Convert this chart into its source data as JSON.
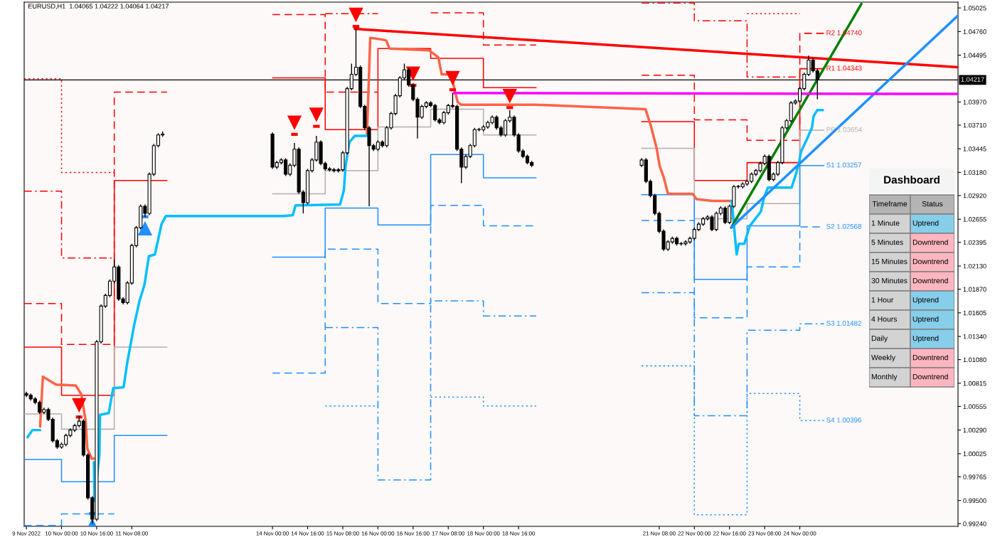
{
  "chart_data": [
    {
      "type": "candlestick",
      "title": "EURUSD,H1  1.04065 1.04222 1.04064 1.04217",
      "color": "#000000",
      "x": [
        "2022-11-09T08:00",
        "2022-11-09T10:00",
        "2022-11-09T12:00",
        "2022-11-09T14:00",
        "2022-11-09T16:00",
        "2022-11-09T18:00",
        "2022-11-09T20:00",
        "2022-11-09T22:00",
        "2022-11-10T00:00",
        "2022-11-10T02:00",
        "2022-11-10T04:00",
        "2022-11-10T06:00",
        "2022-11-10T08:00",
        "2022-11-10T10:00",
        "2022-11-10T12:00",
        "2022-11-10T14:00",
        "2022-11-10T16:00",
        "2022-11-10T18:00",
        "2022-11-10T20:00",
        "2022-11-10T22:00",
        "2022-11-11T00:00",
        "2022-11-11T02:00",
        "2022-11-11T04:00",
        "2022-11-11T06:00",
        "2022-11-11T08:00",
        "2022-11-11T10:00",
        "2022-11-11T12:00",
        "2022-11-11T14:00",
        "2022-11-11T16:00",
        "2022-11-11T18:00",
        "2022-11-11T20:00",
        "2022-11-11T22:00",
        "2022-11-14T00:00",
        "2022-11-14T02:00",
        "2022-11-14T04:00",
        "2022-11-14T06:00",
        "2022-11-14T08:00",
        "2022-11-14T10:00",
        "2022-11-14T12:00",
        "2022-11-14T14:00",
        "2022-11-14T16:00",
        "2022-11-14T18:00",
        "2022-11-14T20:00",
        "2022-11-14T22:00",
        "2022-11-15T00:00",
        "2022-11-15T02:00",
        "2022-11-15T04:00",
        "2022-11-15T06:00",
        "2022-11-15T08:00",
        "2022-11-15T10:00",
        "2022-11-15T12:00",
        "2022-11-15T14:00",
        "2022-11-15T16:00",
        "2022-11-15T18:00",
        "2022-11-15T20:00",
        "2022-11-15T22:00",
        "2022-11-16T00:00",
        "2022-11-16T02:00",
        "2022-11-16T04:00",
        "2022-11-16T06:00",
        "2022-11-16T08:00",
        "2022-11-16T10:00",
        "2022-11-16T12:00",
        "2022-11-16T14:00",
        "2022-11-16T16:00",
        "2022-11-16T18:00",
        "2022-11-16T20:00",
        "2022-11-16T22:00",
        "2022-11-17T00:00",
        "2022-11-17T02:00",
        "2022-11-17T04:00",
        "2022-11-17T06:00",
        "2022-11-17T08:00",
        "2022-11-17T10:00",
        "2022-11-17T12:00",
        "2022-11-17T14:00",
        "2022-11-17T16:00",
        "2022-11-17T18:00",
        "2022-11-17T20:00",
        "2022-11-17T22:00",
        "2022-11-18T00:00",
        "2022-11-18T02:00",
        "2022-11-18T04:00",
        "2022-11-18T06:00",
        "2022-11-18T08:00",
        "2022-11-18T10:00",
        "2022-11-18T12:00",
        "2022-11-18T14:00",
        "2022-11-18T16:00",
        "2022-11-18T18:00",
        "2022-11-18T20:00",
        "2022-11-18T22:00",
        "2022-11-21T00:00",
        "2022-11-21T02:00",
        "2022-11-21T04:00",
        "2022-11-21T06:00",
        "2022-11-21T08:00",
        "2022-11-21T10:00",
        "2022-11-21T12:00",
        "2022-11-21T14:00",
        "2022-11-21T16:00",
        "2022-11-21T18:00",
        "2022-11-21T20:00",
        "2022-11-21T22:00",
        "2022-11-22T00:00",
        "2022-11-22T02:00",
        "2022-11-22T04:00",
        "2022-11-22T06:00",
        "2022-11-22T08:00",
        "2022-11-22T10:00",
        "2022-11-22T12:00",
        "2022-11-22T14:00",
        "2022-11-22T16:00",
        "2022-11-22T18:00",
        "2022-11-22T20:00",
        "2022-11-22T22:00",
        "2022-11-23T00:00",
        "2022-11-23T02:00",
        "2022-11-23T04:00",
        "2022-11-23T06:00",
        "2022-11-23T08:00",
        "2022-11-23T10:00",
        "2022-11-23T12:00",
        "2022-11-23T14:00",
        "2022-11-23T16:00",
        "2022-11-23T18:00",
        "2022-11-23T20:00",
        "2022-11-23T22:00",
        "2022-11-24T00:00",
        "2022-11-24T02:00",
        "2022-11-24T04:00",
        "2022-11-24T06:00",
        "2022-11-24T08:00"
      ],
      "ohlc": [
        [
          1.007,
          1.0072,
          1.0066,
          1.0068
        ],
        [
          1.0068,
          1.007,
          1.0062,
          1.0064
        ],
        [
          1.0064,
          1.0066,
          1.0058,
          1.006
        ],
        [
          1.006,
          1.0062,
          1.0047,
          1.0049
        ],
        [
          1.0049,
          1.0054,
          1.0047,
          1.0052
        ],
        [
          1.0052,
          1.0054,
          1.0039,
          1.0041
        ],
        [
          1.0041,
          1.0043,
          1.0015,
          1.0017
        ],
        [
          1.0017,
          1.0019,
          1.0008,
          1.001
        ],
        [
          1.001,
          1.0015,
          1.0008,
          1.0013
        ],
        [
          1.0013,
          1.0025,
          1.0011,
          1.0023
        ],
        [
          1.0023,
          1.0031,
          1.0021,
          1.0029
        ],
        [
          1.0029,
          1.0036,
          1.0027,
          1.0034
        ],
        [
          1.0034,
          1.0045,
          1.0032,
          1.0039
        ],
        [
          1.0039,
          1.0041,
          0.9999,
          1.0001
        ],
        [
          1.0001,
          1.0003,
          0.9951,
          0.9953
        ],
        [
          0.9953,
          0.9955,
          0.9924,
          0.9929
        ],
        [
          0.9929,
          1.013,
          0.9927,
          1.0128
        ],
        [
          1.0128,
          1.017,
          1.0126,
          1.0168
        ],
        [
          1.0168,
          1.0182,
          1.0166,
          1.018
        ],
        [
          1.018,
          1.0198,
          1.0178,
          1.0196
        ],
        [
          1.0196,
          1.022,
          1.0194,
          1.0212
        ],
        [
          1.0212,
          1.0214,
          1.0174,
          1.0176
        ],
        [
          1.0176,
          1.0178,
          1.017,
          1.0172
        ],
        [
          1.0172,
          1.0196,
          1.017,
          1.0194
        ],
        [
          1.0194,
          1.0238,
          1.0192,
          1.0236
        ],
        [
          1.0236,
          1.0258,
          1.0234,
          1.0256
        ],
        [
          1.0256,
          1.0282,
          1.0254,
          1.028
        ],
        [
          1.028,
          1.0282,
          1.0268,
          1.0272
        ],
        [
          1.0272,
          1.0318,
          1.027,
          1.0316
        ],
        [
          1.0316,
          1.035,
          1.0314,
          1.0348
        ],
        [
          1.0348,
          1.0362,
          1.0346,
          1.036
        ],
        [
          1.036,
          1.0364,
          1.0358,
          1.0361
        ],
        [
          1.0361,
          1.0363,
          1.0322,
          1.0324
        ],
        [
          1.0324,
          1.0331,
          1.0322,
          1.0329
        ],
        [
          1.0329,
          1.0334,
          1.0327,
          1.0332
        ],
        [
          1.0332,
          1.0334,
          1.0314,
          1.0316
        ],
        [
          1.0316,
          1.0328,
          1.0314,
          1.0326
        ],
        [
          1.0326,
          1.0351,
          1.0324,
          1.0344
        ],
        [
          1.0344,
          1.0346,
          1.0294,
          1.0296
        ],
        [
          1.0296,
          1.0298,
          1.0272,
          1.0284
        ],
        [
          1.0284,
          1.0322,
          1.0282,
          1.032
        ],
        [
          1.032,
          1.0334,
          1.0318,
          1.0332
        ],
        [
          1.0332,
          1.0359,
          1.033,
          1.0352
        ],
        [
          1.0352,
          1.0354,
          1.0326,
          1.0328
        ],
        [
          1.0328,
          1.033,
          1.032,
          1.0322
        ],
        [
          1.0322,
          1.0324,
          1.0319,
          1.0321
        ],
        [
          1.0321,
          1.0323,
          1.0318,
          1.032
        ],
        [
          1.032,
          1.0323,
          1.0318,
          1.0321
        ],
        [
          1.0321,
          1.0342,
          1.0319,
          1.034
        ],
        [
          1.034,
          1.0414,
          1.0338,
          1.0412
        ],
        [
          1.0412,
          1.044,
          1.041,
          1.0428
        ],
        [
          1.0428,
          1.0479,
          1.0426,
          1.0436
        ],
        [
          1.0436,
          1.0438,
          1.039,
          1.0392
        ],
        [
          1.0392,
          1.0394,
          1.0366,
          1.0368
        ],
        [
          1.0368,
          1.037,
          1.028,
          1.0348
        ],
        [
          1.0348,
          1.035,
          1.0342,
          1.0344
        ],
        [
          1.0344,
          1.0354,
          1.0342,
          1.0352
        ],
        [
          1.0352,
          1.0354,
          1.0346,
          1.0348
        ],
        [
          1.0348,
          1.037,
          1.0346,
          1.0368
        ],
        [
          1.0368,
          1.0386,
          1.0366,
          1.0384
        ],
        [
          1.0384,
          1.0406,
          1.0382,
          1.0404
        ],
        [
          1.0404,
          1.0426,
          1.0402,
          1.0424
        ],
        [
          1.0424,
          1.044,
          1.0422,
          1.0433
        ],
        [
          1.0433,
          1.0435,
          1.0414,
          1.0416
        ],
        [
          1.0416,
          1.0418,
          1.0398,
          1.04
        ],
        [
          1.04,
          1.0402,
          1.0356,
          1.038
        ],
        [
          1.038,
          1.0394,
          1.0378,
          1.0392
        ],
        [
          1.0392,
          1.0398,
          1.039,
          1.0396
        ],
        [
          1.0396,
          1.0398,
          1.0391,
          1.0393
        ],
        [
          1.0393,
          1.0395,
          1.0375,
          1.0377
        ],
        [
          1.0377,
          1.0379,
          1.0372,
          1.0374
        ],
        [
          1.0374,
          1.0387,
          1.0372,
          1.0385
        ],
        [
          1.0385,
          1.0395,
          1.0383,
          1.0393
        ],
        [
          1.0393,
          1.0407,
          1.039,
          1.0392
        ],
        [
          1.0392,
          1.0394,
          1.0342,
          1.0344
        ],
        [
          1.0344,
          1.0346,
          1.0306,
          1.0324
        ],
        [
          1.0324,
          1.0338,
          1.0322,
          1.0336
        ],
        [
          1.0336,
          1.035,
          1.0334,
          1.0348
        ],
        [
          1.0348,
          1.0368,
          1.0346,
          1.0366
        ],
        [
          1.0366,
          1.0368,
          1.0364,
          1.0366
        ],
        [
          1.0366,
          1.0371,
          1.0364,
          1.0369
        ],
        [
          1.0369,
          1.0376,
          1.0367,
          1.0374
        ],
        [
          1.0374,
          1.0382,
          1.0372,
          1.038
        ],
        [
          1.038,
          1.0382,
          1.0366,
          1.0368
        ],
        [
          1.0368,
          1.037,
          1.0358,
          1.036
        ],
        [
          1.036,
          1.0378,
          1.0358,
          1.0376
        ],
        [
          1.0376,
          1.0388,
          1.0374,
          1.038
        ],
        [
          1.038,
          1.0382,
          1.0358,
          1.036
        ],
        [
          1.036,
          1.0362,
          1.034,
          1.0342
        ],
        [
          1.0342,
          1.0344,
          1.0334,
          1.0336
        ],
        [
          1.0336,
          1.0338,
          1.0327,
          1.0329
        ],
        [
          1.0329,
          1.0331,
          1.0324,
          1.0326
        ],
        [
          1.0326,
          1.0334,
          1.0324,
          1.0332
        ],
        [
          1.0332,
          1.0334,
          1.0306,
          1.0308
        ],
        [
          1.0308,
          1.031,
          1.029,
          1.0292
        ],
        [
          1.0292,
          1.0294,
          1.027,
          1.0272
        ],
        [
          1.0272,
          1.0274,
          1.025,
          1.0252
        ],
        [
          1.0252,
          1.0254,
          1.023,
          1.0232
        ],
        [
          1.0232,
          1.0242,
          1.023,
          1.024
        ],
        [
          1.024,
          1.0246,
          1.0238,
          1.0244
        ],
        [
          1.0244,
          1.0246,
          1.0236,
          1.0238
        ],
        [
          1.0238,
          1.024,
          1.0236,
          1.0238
        ],
        [
          1.0238,
          1.0242,
          1.0236,
          1.024
        ],
        [
          1.024,
          1.0246,
          1.0238,
          1.0244
        ],
        [
          1.0244,
          1.0256,
          1.0242,
          1.0254
        ],
        [
          1.0254,
          1.0262,
          1.0252,
          1.026
        ],
        [
          1.026,
          1.0268,
          1.0258,
          1.0266
        ],
        [
          1.0266,
          1.027,
          1.0264,
          1.0268
        ],
        [
          1.0268,
          1.027,
          1.0252,
          1.0254
        ],
        [
          1.0254,
          1.0274,
          1.0252,
          1.0272
        ],
        [
          1.0272,
          1.028,
          1.027,
          1.0278
        ],
        [
          1.0278,
          1.028,
          1.026,
          1.0262
        ],
        [
          1.0262,
          1.0282,
          1.026,
          1.028
        ],
        [
          1.028,
          1.0304,
          1.0278,
          1.0302
        ],
        [
          1.0302,
          1.0304,
          1.03,
          1.0302
        ],
        [
          1.0302,
          1.0307,
          1.03,
          1.0305
        ],
        [
          1.0305,
          1.031,
          1.0303,
          1.0308
        ],
        [
          1.0308,
          1.0318,
          1.0306,
          1.0316
        ],
        [
          1.0316,
          1.0322,
          1.0314,
          1.032
        ],
        [
          1.032,
          1.033,
          1.0318,
          1.0328
        ],
        [
          1.0328,
          1.0338,
          1.0326,
          1.0336
        ],
        [
          1.0336,
          1.0338,
          1.0308,
          1.031
        ],
        [
          1.031,
          1.0318,
          1.0308,
          1.0316
        ],
        [
          1.0316,
          1.0331,
          1.0314,
          1.0329
        ],
        [
          1.0329,
          1.037,
          1.0327,
          1.0368
        ],
        [
          1.0368,
          1.0378,
          1.0366,
          1.0376
        ],
        [
          1.0376,
          1.0398,
          1.0374,
          1.0396
        ],
        [
          1.0396,
          1.04,
          1.0394,
          1.0398
        ],
        [
          1.0398,
          1.0414,
          1.0396,
          1.0412
        ],
        [
          1.0412,
          1.043,
          1.041,
          1.0428
        ],
        [
          1.0428,
          1.0449,
          1.0426,
          1.0444
        ],
        [
          1.0444,
          1.0446,
          1.043,
          1.0432
        ],
        [
          1.0432,
          1.0434,
          1.04,
          1.04217
        ]
      ],
      "series": [
        {
          "type": "line",
          "color": "#ff0000",
          "line_style": "dashed",
          "x": [
            "2022-11-21T00:00",
            "2022-11-22T00:00",
            "2022-11-22T00:00",
            "2022-11-23T00:00",
            "2022-11-23T00:00",
            "2022-11-24T00:00",
            "2022-11-24T00:00",
            "2022-11-24T11:00"
          ],
          "values": [
            1.0427,
            1.0427,
            1.0377,
            1.0377,
            1.0354,
            1.0354,
            1.0474,
            1.0474
          ]
        },
        {
          "type": "line",
          "color": "#ff0000",
          "line_style": "solid",
          "x": [
            "2022-11-21T00:00",
            "2022-11-22T00:00",
            "2022-11-22T00:00",
            "2022-11-23T00:00",
            "2022-11-23T00:00",
            "2022-11-24T00:00",
            "2022-11-24T00:00",
            "2022-11-24T11:00"
          ],
          "values": [
            1.0375,
            1.0375,
            1.0309,
            1.0309,
            1.0329,
            1.0329,
            1.04343,
            1.04343
          ]
        },
        {
          "type": "line",
          "color": "#b0b0b0",
          "line_style": "solid",
          "x": [
            "2022-11-21T00:00",
            "2022-11-22T00:00",
            "2022-11-22T00:00",
            "2022-11-23T00:00",
            "2022-11-23T00:00",
            "2022-11-24T00:00",
            "2022-11-24T00:00",
            "2022-11-24T11:00"
          ],
          "values": [
            1.0345,
            1.0345,
            1.0266,
            1.0266,
            1.0283,
            1.0283,
            1.03654,
            1.03654
          ]
        },
        {
          "type": "line",
          "color": "#1e90ff",
          "line_style": "solid",
          "x": [
            "2022-11-21T00:00",
            "2022-11-22T00:00",
            "2022-11-22T00:00",
            "2022-11-23T00:00",
            "2022-11-23T00:00",
            "2022-11-24T00:00",
            "2022-11-24T00:00",
            "2022-11-24T11:00"
          ],
          "values": [
            1.0293,
            1.0293,
            1.0198,
            1.0198,
            1.0258,
            1.0258,
            1.03257,
            1.03257
          ]
        },
        {
          "type": "line",
          "color": "#1e90ff",
          "line_style": "dashed",
          "x": [
            "2022-11-21T00:00",
            "2022-11-22T00:00",
            "2022-11-22T00:00",
            "2022-11-23T00:00",
            "2022-11-23T00:00",
            "2022-11-24T00:00",
            "2022-11-24T00:00",
            "2022-11-24T11:00"
          ],
          "values": [
            1.0264,
            1.0264,
            1.0155,
            1.0155,
            1.0212,
            1.0212,
            1.02568,
            1.02568
          ]
        },
        {
          "type": "line",
          "color": "#1e90ff",
          "line_style": "dashdot",
          "x": [
            "2022-11-21T00:00",
            "2022-11-22T00:00",
            "2022-11-22T00:00",
            "2022-11-23T00:00",
            "2022-11-23T00:00",
            "2022-11-24T00:00",
            "2022-11-24T00:00",
            "2022-11-24T11:00"
          ],
          "values": [
            1.0183,
            1.0183,
            1.0045,
            1.0045,
            1.0141,
            1.0141,
            1.01482,
            1.01482
          ]
        },
        {
          "type": "line",
          "color": "#1e90ff",
          "line_style": "dotted",
          "x": [
            "2022-11-21T00:00",
            "2022-11-22T00:00",
            "2022-11-22T00:00",
            "2022-11-23T00:00",
            "2022-11-23T00:00",
            "2022-11-24T00:00",
            "2022-11-24T00:00",
            "2022-11-24T11:00"
          ],
          "values": [
            1.0101,
            1.0101,
            0.9934,
            0.9934,
            1.007,
            1.007,
            1.00396,
            1.00396
          ]
        },
        {
          "type": "line",
          "color": "#ff0000",
          "line_style": "dashed",
          "x": [
            "2022-11-09T07:00",
            "2022-11-10T00:00",
            "2022-11-10T00:00",
            "2022-11-11T00:00",
            "2022-11-11T00:00",
            "2022-11-12T00:00"
          ],
          "values": [
            1.0171,
            1.0171,
            1.0125,
            1.0125,
            1.0408,
            1.0408
          ]
        },
        {
          "type": "line",
          "color": "#ff0000",
          "line_style": "dashed",
          "x": [
            "2022-11-14T00:00",
            "2022-11-15T00:00",
            "2022-11-15T00:00",
            "2022-11-16T00:00"
          ],
          "values": [
            1.0495,
            1.0495,
            1.0408,
            1.0408
          ]
        },
        {
          "type": "line",
          "color": "#ff0000",
          "line_style": "dashed",
          "x": [
            "2022-11-17T00:00",
            "2022-11-18T00:00",
            "2022-11-18T00:00",
            "2022-11-19T00:00"
          ],
          "values": [
            1.0497,
            1.0497,
            1.0461,
            1.0461
          ]
        },
        {
          "type": "line",
          "color": "#ff0000",
          "line_style": "solid",
          "x": [
            "2022-11-09T07:00",
            "2022-11-10T00:00",
            "2022-11-10T00:00",
            "2022-11-11T00:00",
            "2022-11-11T00:00",
            "2022-11-12T00:00"
          ],
          "values": [
            1.0122,
            1.0122,
            1.0068,
            1.0068,
            1.0309,
            1.0309
          ]
        },
        {
          "type": "line",
          "color": "#ff0000",
          "line_style": "solid",
          "x": [
            "2022-11-14T00:00",
            "2022-11-15T00:00",
            "2022-11-15T00:00",
            "2022-11-16T00:00",
            "2022-11-16T00:00",
            "2022-11-17T00:00",
            "2022-11-17T00:00",
            "2022-11-18T00:00",
            "2022-11-18T00:00",
            "2022-11-19T00:00"
          ],
          "values": [
            1.0424,
            1.0424,
            1.0366,
            1.0366,
            1.0457,
            1.0457,
            1.0446,
            1.0446,
            1.0413,
            1.0413
          ]
        },
        {
          "type": "line",
          "color": "#b0b0b0",
          "line_style": "solid",
          "x": [
            "2022-11-09T07:00",
            "2022-11-10T00:00",
            "2022-11-10T00:00",
            "2022-11-11T00:00",
            "2022-11-11T00:00",
            "2022-11-12T00:00"
          ],
          "values": [
            1.0047,
            1.0047,
            1.003,
            1.003,
            1.0122,
            1.0122
          ]
        },
        {
          "type": "line",
          "color": "#b0b0b0",
          "line_style": "solid",
          "x": [
            "2022-11-14T00:00",
            "2022-11-15T00:00",
            "2022-11-15T00:00",
            "2022-11-16T00:00",
            "2022-11-16T00:00",
            "2022-11-17T00:00",
            "2022-11-17T00:00",
            "2022-11-18T00:00",
            "2022-11-18T00:00",
            "2022-11-19T00:00"
          ],
          "values": [
            1.0294,
            1.0294,
            1.032,
            1.032,
            1.0369,
            1.0369,
            1.0389,
            1.0389,
            1.036,
            1.036
          ]
        },
        {
          "type": "line",
          "color": "#1e90ff",
          "line_style": "solid",
          "x": [
            "2022-11-09T07:00",
            "2022-11-10T00:00",
            "2022-11-10T00:00",
            "2022-11-11T00:00",
            "2022-11-11T00:00",
            "2022-11-12T00:00"
          ],
          "values": [
            0.9996,
            0.9996,
            0.9971,
            0.9971,
            1.0023,
            1.0023
          ]
        },
        {
          "type": "line",
          "color": "#1e90ff",
          "line_style": "solid",
          "x": [
            "2022-11-14T00:00",
            "2022-11-15T00:00",
            "2022-11-15T00:00",
            "2022-11-16T00:00",
            "2022-11-16T00:00",
            "2022-11-17T00:00",
            "2022-11-17T00:00",
            "2022-11-18T00:00",
            "2022-11-18T00:00",
            "2022-11-19T00:00"
          ],
          "values": [
            1.0223,
            1.0223,
            1.0278,
            1.0278,
            1.0259,
            1.0259,
            1.0338,
            1.0338,
            1.0312,
            1.0312
          ]
        },
        {
          "type": "line",
          "color": "#1e90ff",
          "line_style": "dashed",
          "x": [
            "2022-11-09T07:00",
            "2022-11-10T00:00",
            "2022-11-10T00:00",
            "2022-11-11T00:00"
          ],
          "values": [
            0.9922,
            0.9922,
            0.9935,
            0.9935
          ]
        },
        {
          "type": "line",
          "color": "#1e90ff",
          "line_style": "dashed",
          "x": [
            "2022-11-14T00:00",
            "2022-11-15T00:00",
            "2022-11-15T00:00",
            "2022-11-16T00:00",
            "2022-11-16T00:00",
            "2022-11-17T00:00",
            "2022-11-17T00:00",
            "2022-11-18T00:00",
            "2022-11-18T00:00",
            "2022-11-19T00:00"
          ],
          "values": [
            1.0093,
            1.0093,
            1.0232,
            1.0232,
            1.0171,
            1.0171,
            1.0281,
            1.0281,
            1.0258,
            1.0258
          ]
        },
        {
          "type": "line",
          "color": "#1e90ff",
          "line_style": "dashdot",
          "x": [
            "2022-11-15T00:00",
            "2022-11-16T00:00",
            "2022-11-16T00:00",
            "2022-11-17T00:00",
            "2022-11-17T00:00",
            "2022-11-18T00:00",
            "2022-11-18T00:00",
            "2022-11-19T00:00"
          ],
          "values": [
            1.0144,
            1.0144,
            0.9973,
            0.9973,
            1.0174,
            1.0174,
            1.0157,
            1.0157
          ]
        },
        {
          "type": "line",
          "color": "#1e90ff",
          "line_style": "dotted",
          "x": [
            "2022-11-15T00:00",
            "2022-11-16T00:00"
          ],
          "values": [
            1.0056,
            1.0056
          ]
        },
        {
          "type": "line",
          "color": "#1e90ff",
          "line_style": "dotted",
          "x": [
            "2022-11-17T00:00",
            "2022-11-18T00:00",
            "2022-11-18T00:00",
            "2022-11-19T00:00"
          ],
          "values": [
            1.0066,
            1.0066,
            1.0056,
            1.0056
          ]
        },
        {
          "type": "line",
          "color": "#ff0000",
          "line_style": "dashdot",
          "x": [
            "2022-11-09T07:00",
            "2022-11-10T00:00",
            "2022-11-10T00:00",
            "2022-11-11T00:00"
          ],
          "values": [
            1.0297,
            1.0297,
            1.0222,
            1.0222
          ]
        },
        {
          "type": "line",
          "color": "#ff0000",
          "line_style": "dashdot",
          "x": [
            "2022-11-15T00:00",
            "2022-11-16T00:00"
          ],
          "values": [
            1.0496,
            1.0496
          ]
        },
        {
          "type": "line",
          "color": "#ff0000",
          "line_style": "dashdot",
          "x": [
            "2022-11-21T00:00",
            "2022-11-22T00:00",
            "2022-11-22T00:00",
            "2022-11-23T00:00",
            "2022-11-23T00:00",
            "2022-11-24T00:00"
          ],
          "values": [
            1.0508,
            1.0508,
            1.0488,
            1.0488,
            1.0425,
            1.0425
          ]
        },
        {
          "type": "line",
          "color": "#ff0000",
          "line_style": "dotted",
          "x": [
            "2022-11-09T07:00",
            "2022-11-10T00:00",
            "2022-11-10T00:00",
            "2022-11-11T00:00"
          ],
          "values": [
            1.0423,
            1.0423,
            1.0318,
            1.0318
          ]
        },
        {
          "type": "line",
          "color": "#ff0000",
          "line_style": "dotted",
          "x": [
            "2022-11-23T00:00",
            "2022-11-24T00:00"
          ],
          "values": [
            1.0496,
            1.0496
          ]
        },
        {
          "type": "line",
          "color": "#ff6347",
          "x": [
            "2022-11-09T14:15",
            "2022-11-09T15:30",
            "2022-11-09T21:30",
            "2022-11-10T06:30",
            "2022-11-10T09:00",
            "2022-11-10T11:00",
            "2022-11-10T11:45",
            "2022-11-10T13:45",
            "2022-11-10T14:45"
          ],
          "values": [
            1.0033,
            1.0089,
            1.008,
            1.0079,
            1.0069,
            1.0039,
            1.0008,
            0.9997,
            0.9997
          ]
        },
        {
          "type": "line",
          "color": "#ff6347",
          "x": [
            "2022-11-15T19:00",
            "2022-11-15T20:30",
            "2022-11-16T02:00",
            "2022-11-16T03:45",
            "2022-11-16T05:15",
            "2022-11-16T23:15",
            "2022-11-17T03:30",
            "2022-11-17T05:00",
            "2022-11-17T09:15",
            "2022-11-17T12:15",
            "2022-11-17T13:45",
            "2022-11-18T23:15",
            "2022-11-21T01:45",
            "2022-11-21T04:15",
            "2022-11-21T06:45",
            "2022-11-21T08:15",
            "2022-11-21T10:00",
            "2022-11-21T12:00",
            "2022-11-21T23:15",
            "2022-11-22T01:00",
            "2022-11-22T08:30",
            "2022-11-22T17:00"
          ],
          "values": [
            1.036,
            1.0469,
            1.0467,
            1.0466,
            1.0457,
            1.0455,
            1.0447,
            1.0428,
            1.0428,
            1.0397,
            1.0394,
            1.0394,
            1.0389,
            1.037,
            1.0346,
            1.0325,
            1.0313,
            1.0294,
            1.0294,
            1.0288,
            1.0286,
            1.0286
          ]
        },
        {
          "type": "line",
          "color": "#00bfff",
          "x": [
            "2022-11-09T08:30",
            "2022-11-09T10:45",
            "2022-11-09T14:15"
          ],
          "values": [
            1.0021,
            1.0029,
            1.0029
          ]
        },
        {
          "type": "line",
          "color": "#00bfff",
          "x": [
            "2022-11-10T14:45",
            "2022-11-10T15:00",
            "2022-11-10T17:15",
            "2022-11-10T17:30",
            "2022-11-10T21:30",
            "2022-11-10T23:30",
            "2022-11-11T04:15",
            "2022-11-11T06:00",
            "2022-11-11T09:00",
            "2022-11-11T11:30",
            "2022-11-11T13:45",
            "2022-11-11T15:45",
            "2022-11-11T18:30",
            "2022-11-11T21:30",
            "2022-11-11T23:30",
            "2022-11-14T05:15",
            "2022-11-14T09:15",
            "2022-11-14T10:30",
            "2022-11-15T06:45",
            "2022-11-15T08:30",
            "2022-11-15T09:15",
            "2022-11-15T11:00",
            "2022-11-15T13:30",
            "2022-11-15T19:15"
          ],
          "values": [
            0.9993,
            0.995,
            1.0002,
            1.0046,
            1.0048,
            1.0076,
            1.0077,
            1.0106,
            1.0146,
            1.0174,
            1.0192,
            1.0224,
            1.0226,
            1.026,
            1.0269,
            1.0269,
            1.027,
            1.0281,
            1.0282,
            1.0298,
            1.0325,
            1.0352,
            1.0359,
            1.0359
          ]
        },
        {
          "type": "line",
          "color": "#00bfff",
          "x": [
            "2022-11-22T17:00",
            "2022-11-22T19:15",
            "2022-11-22T20:15",
            "2022-11-22T22:45",
            "2022-11-23T01:15",
            "2022-11-23T03:45",
            "2022-11-23T06:15",
            "2022-11-23T07:45",
            "2022-11-23T09:30",
            "2022-11-23T20:15",
            "2022-11-23T22:00",
            "2022-11-23T23:45",
            "2022-11-24T00:30",
            "2022-11-24T03:00",
            "2022-11-24T05:30",
            "2022-11-24T06:15",
            "2022-11-24T08:00",
            "2022-11-24T10:30"
          ],
          "values": [
            1.0286,
            1.0226,
            1.0238,
            1.0238,
            1.0258,
            1.0266,
            1.0274,
            1.029,
            1.0301,
            1.0301,
            1.0314,
            1.033,
            1.0341,
            1.0354,
            1.0368,
            1.0381,
            1.0388,
            1.0388
          ]
        },
        {
          "type": "line",
          "color": "#ff0000",
          "x": [
            "2022-11-15T13:30",
            "2022-11-27T00:00"
          ],
          "values": [
            1.0479,
            1.0436
          ]
        },
        {
          "type": "line",
          "color": "#008000",
          "x": [
            "2022-11-22T16:45",
            "2022-11-25T04:00"
          ],
          "values": [
            1.0256,
            1.0507
          ]
        },
        {
          "type": "line",
          "color": "#1e90ff",
          "x": [
            "2022-11-22T16:45",
            "2022-11-27T00:00"
          ],
          "values": [
            1.0256,
            1.0494
          ]
        },
        {
          "type": "line",
          "color": "#ff00ff",
          "x": [
            "2022-11-17T10:30",
            "2022-11-27T00:00"
          ],
          "values": [
            1.0407,
            1.0406
          ]
        },
        {
          "type": "scatter",
          "color": "#ff0000",
          "marker": "triangle",
          "x": [
            "2022-11-10T08:00",
            "2022-11-14T10:00",
            "2022-11-14T20:00",
            "2022-11-15T14:00",
            "2022-11-16T16:00",
            "2022-11-17T10:00",
            "2022-11-18T12:00"
          ],
          "values": [
            1.0057,
            1.0374,
            1.0383,
            1.0495,
            1.0429,
            1.0424,
            1.0404
          ]
        },
        {
          "type": "scatter",
          "color": "#1e90ff",
          "marker": "triangle",
          "x": [
            "2022-11-10T14:00",
            "2022-11-11T14:00"
          ],
          "values": [
            0.9922,
            1.0255
          ]
        }
      ],
      "xlim": [
        "2022-11-09T07:00",
        "2022-11-27T00:00"
      ],
      "ylim": [
        0.9921,
        1.0509
      ],
      "xticks": [
        {
          "value": "2022-11-09T08:00",
          "label": "9 Nov 2022"
        },
        {
          "value": "2022-11-10T00:00",
          "label": "10 Nov 00:00"
        },
        {
          "value": "2022-11-10T16:00",
          "label": "10 Nov 16:00"
        },
        {
          "value": "2022-11-11T08:00",
          "label": "11 Nov 08:00"
        },
        {
          "value": "2022-11-14T00:00",
          "label": "14 Nov 00:00"
        },
        {
          "value": "2022-11-14T16:00",
          "label": "14 Nov 16:00"
        },
        {
          "value": "2022-11-15T08:00",
          "label": "15 Nov 08:00"
        },
        {
          "value": "2022-11-16T00:00",
          "label": "16 Nov 00:00"
        },
        {
          "value": "2022-11-16T16:00",
          "label": "16 Nov 16:00"
        },
        {
          "value": "2022-11-17T08:00",
          "label": "17 Nov 08:00"
        },
        {
          "value": "2022-11-18T00:00",
          "label": "18 Nov 00:00"
        },
        {
          "value": "2022-11-18T16:00",
          "label": "18 Nov 16:00"
        },
        {
          "value": "2022-11-21T08:00",
          "label": "21 Nov 08:00"
        },
        {
          "value": "2022-11-22T00:00",
          "label": "22 Nov 00:00"
        },
        {
          "value": "2022-11-22T16:00",
          "label": "22 Nov 16:00"
        },
        {
          "value": "2022-11-23T08:00",
          "label": "23 Nov 08:00"
        },
        {
          "value": "2022-11-24T00:00",
          "label": "24 Nov 00:00"
        }
      ],
      "yticks": [
        1.05025,
        {
          "value": 1.0476,
          "label": "1.04760"
        },
        1.04495,
        {
          "value": 1.0397,
          "label": "1.03970"
        },
        {
          "value": 1.0371,
          "label": "1.03710"
        },
        1.03445,
        {
          "value": 1.0318,
          "label": "1.03180"
        },
        {
          "value": 1.0292,
          "label": "1.02920"
        },
        1.02655,
        1.02395,
        {
          "value": 1.0213,
          "label": "1.02130"
        },
        {
          "value": 1.0187,
          "label": "1.01870"
        },
        1.01605,
        {
          "value": 1.0134,
          "label": "1.01340"
        },
        {
          "value": 1.0108,
          "label": "1.01080"
        },
        1.00815,
        1.00555,
        {
          "value": 1.0029,
          "label": "1.00290"
        },
        1.00025,
        0.99765,
        {
          "value": 0.995,
          "label": "0.99500"
        },
        {
          "value": 0.9924,
          "label": "0.99240"
        }
      ],
      "ref_lines": [
        {
          "axis": "y",
          "value": 1.04217,
          "label": "1.04217",
          "color": "#000000"
        }
      ],
      "annotations": [
        "R2 1.04740",
        "R1 1.04343",
        "PP 1.03654",
        "S1 1.03257",
        "S2 1.02568",
        "S3 1.01482",
        "S4 1.00396"
      ]
    },
    {
      "type": "other",
      "title": "Dashboard",
      "annotations": [
        "Timeframe",
        "Status",
        "1 Minute",
        "Uptrend",
        "5 Minutes",
        "Downtrend",
        "15 Minutes",
        "Downtrend",
        "30 Minutes",
        "Downtrend",
        "1 Hour",
        "Uptrend",
        "4 Hours",
        "Uptrend",
        "Daily",
        "Uptrend",
        "Weekly",
        "Downtrend",
        "Monthly",
        "Downtrend"
      ],
      "colors": [
        "#b4b4b4",
        "#b4b4b4",
        "#d3d3d3",
        "#87ceeb",
        "#d3d3d3",
        "#ffb6c1",
        "#d3d3d3",
        "#ffb6c1",
        "#d3d3d3",
        "#ffb6c1",
        "#d3d3d3",
        "#87ceeb",
        "#d3d3d3",
        "#87ceeb",
        "#d3d3d3",
        "#87ceeb",
        "#d3d3d3",
        "#ffb6c1",
        "#d3d3d3",
        "#ffb6c1"
      ]
    }
  ]
}
